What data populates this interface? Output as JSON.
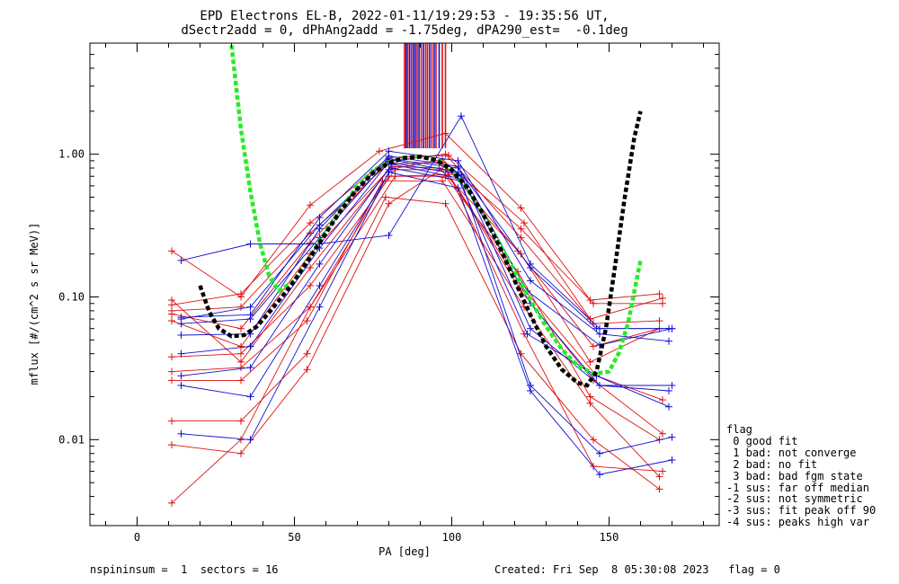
{
  "title": {
    "line1": "EPD Electrons EL-B, 2022-01-11/19:29:53 - 19:35:56 UT,",
    "line2": "dSectr2add = 0, dPhAng2add = -1.75deg, dPA290_est=  -0.1deg"
  },
  "footer": {
    "left": "nspininsum =  1  sectors = 16",
    "right": "Created: Fri Sep  8 05:30:08 2023   flag = 0"
  },
  "flag_legend": {
    "title": "flag",
    "items": [
      " 0 good fit",
      " 1 bad: not converge",
      " 2 bad: no fit",
      " 3 bad: bad fgm state",
      "-1 sus: far off median",
      "-2 sus: not symmetric",
      "-3 sus: fit peak off 90",
      "-4 sus: peaks high var"
    ]
  },
  "colors": {
    "red": "#e01010",
    "blue": "#1010d0",
    "green": "#22ee22",
    "black": "#000000"
  },
  "chart_data": {
    "type": "line",
    "xlabel": "PA [deg]",
    "ylabel": "mflux [#/(cm^2 s sr MeV)]",
    "xlim": [
      -15,
      185
    ],
    "ylim": [
      0.0025,
      6.0
    ],
    "ylog": true,
    "xticks": [
      0,
      50,
      100,
      150
    ],
    "yticks": [
      0.01,
      0.1,
      1.0
    ],
    "ytick_labels": [
      "0.01",
      "0.10",
      "1.00"
    ],
    "grid": false,
    "top_markers": {
      "x": [
        85,
        85.5,
        86,
        86.6,
        87.2,
        87.8,
        88.4,
        89,
        89.6,
        90.3,
        91,
        91.7,
        92.3,
        93,
        93.7,
        94.4,
        95,
        96,
        97,
        98
      ],
      "colors": [
        "red",
        "blue",
        "red",
        "blue",
        "red",
        "blue",
        "blue",
        "red",
        "blue",
        "red",
        "blue",
        "red",
        "red",
        "blue",
        "red",
        "blue",
        "red",
        "blue",
        "red",
        "red"
      ],
      "y_top": 6.0,
      "y_bottom": 1.1
    },
    "series": [
      {
        "color": "red",
        "x": [
          11,
          33,
          55,
          77,
          98,
          122,
          144,
          166
        ],
        "y": [
          0.21,
          0.1,
          0.44,
          1.05,
          1.4,
          0.42,
          0.095,
          0.105
        ]
      },
      {
        "color": "red",
        "x": [
          11,
          33,
          55,
          80,
          99,
          123,
          144,
          167
        ],
        "y": [
          0.088,
          0.105,
          0.33,
          0.95,
          0.98,
          0.33,
          0.07,
          0.098
        ]
      },
      {
        "color": "red",
        "x": [
          11,
          33,
          55,
          81,
          98,
          122,
          145,
          166
        ],
        "y": [
          0.08,
          0.085,
          0.28,
          0.9,
          1.0,
          0.26,
          0.065,
          0.068
        ]
      },
      {
        "color": "red",
        "x": [
          11,
          33,
          55,
          79,
          97,
          121,
          145,
          166
        ],
        "y": [
          0.076,
          0.06,
          0.24,
          0.85,
          0.88,
          0.21,
          0.045,
          0.06
        ]
      },
      {
        "color": "red",
        "x": [
          11,
          33,
          55,
          81,
          96,
          122,
          144,
          166
        ],
        "y": [
          0.068,
          0.045,
          0.2,
          0.82,
          0.8,
          0.2,
          0.035,
          0.06
        ]
      },
      {
        "color": "red",
        "x": [
          11,
          33,
          55,
          82,
          98,
          122,
          146,
          167
        ],
        "y": [
          0.038,
          0.04,
          0.12,
          0.78,
          0.78,
          0.12,
          0.028,
          0.019
        ]
      },
      {
        "color": "red",
        "x": [
          11,
          33,
          55,
          80,
          99,
          122,
          145,
          167
        ],
        "y": [
          0.03,
          0.032,
          0.085,
          0.7,
          0.72,
          0.11,
          0.026,
          0.011
        ]
      },
      {
        "color": "red",
        "x": [
          11,
          33,
          54,
          78,
          97,
          123,
          144,
          166
        ],
        "y": [
          0.026,
          0.026,
          0.068,
          0.65,
          0.65,
          0.085,
          0.018,
          0.0055
        ]
      },
      {
        "color": "red",
        "x": [
          11,
          33,
          54,
          79,
          98,
          122,
          145,
          166
        ],
        "y": [
          0.0135,
          0.0135,
          0.04,
          0.5,
          0.45,
          0.04,
          0.01,
          0.0045
        ]
      },
      {
        "color": "red",
        "x": [
          11,
          33,
          54,
          80,
          98,
          123,
          145,
          167
        ],
        "y": [
          0.0092,
          0.008,
          0.031,
          0.45,
          0.82,
          0.055,
          0.0065,
          0.006
        ]
      },
      {
        "color": "red",
        "x": [
          11,
          33,
          55,
          82,
          98,
          121,
          144,
          166
        ],
        "y": [
          0.0036,
          0.01,
          0.085,
          0.7,
          0.7,
          0.15,
          0.02,
          0.01
        ]
      },
      {
        "color": "red",
        "x": [
          11,
          33,
          55,
          80,
          97,
          122,
          145,
          167
        ],
        "y": [
          0.095,
          0.035,
          0.16,
          0.78,
          0.92,
          0.3,
          0.09,
          0.09
        ]
      },
      {
        "color": "blue",
        "x": [
          14,
          36,
          58,
          80,
          103,
          125,
          147,
          170
        ],
        "y": [
          0.18,
          0.235,
          0.235,
          0.27,
          1.85,
          0.17,
          0.06,
          0.06
        ]
      },
      {
        "color": "blue",
        "x": [
          14,
          36,
          58,
          80,
          102,
          125,
          147,
          169
        ],
        "y": [
          0.072,
          0.075,
          0.36,
          1.05,
          0.9,
          0.13,
          0.055,
          0.049
        ]
      },
      {
        "color": "blue",
        "x": [
          14,
          36,
          58,
          80,
          102,
          124,
          147,
          170
        ],
        "y": [
          0.054,
          0.055,
          0.3,
          0.97,
          0.82,
          0.11,
          0.046,
          0.06
        ]
      },
      {
        "color": "blue",
        "x": [
          14,
          36,
          58,
          80,
          102,
          125,
          147,
          170
        ],
        "y": [
          0.065,
          0.07,
          0.26,
          0.92,
          0.75,
          0.09,
          0.024,
          0.024
        ]
      },
      {
        "color": "blue",
        "x": [
          14,
          36,
          58,
          80,
          103,
          125,
          147,
          169
        ],
        "y": [
          0.04,
          0.045,
          0.22,
          0.88,
          0.72,
          0.06,
          0.024,
          0.022
        ]
      },
      {
        "color": "blue",
        "x": [
          14,
          36,
          58,
          81,
          102,
          124,
          146,
          169
        ],
        "y": [
          0.028,
          0.032,
          0.17,
          0.85,
          0.68,
          0.055,
          0.028,
          0.017
        ]
      },
      {
        "color": "blue",
        "x": [
          14,
          36,
          58,
          81,
          103,
          125,
          147,
          170
        ],
        "y": [
          0.024,
          0.02,
          0.12,
          0.8,
          0.65,
          0.024,
          0.008,
          0.0104
        ]
      },
      {
        "color": "blue",
        "x": [
          14,
          36,
          58,
          80,
          102,
          125,
          147,
          170
        ],
        "y": [
          0.011,
          0.01,
          0.085,
          0.75,
          0.58,
          0.022,
          0.0057,
          0.0072
        ]
      },
      {
        "color": "blue",
        "x": [
          14,
          36,
          58,
          80,
          102,
          125,
          146,
          169
        ],
        "y": [
          0.07,
          0.085,
          0.32,
          0.93,
          0.8,
          0.16,
          0.06,
          0.06
        ]
      }
    ],
    "fits": [
      {
        "color": "green",
        "style": "dashed",
        "x": [
          30,
          33,
          36,
          39,
          42,
          45,
          50,
          55,
          60,
          65,
          70,
          75,
          80,
          85,
          90,
          95,
          100,
          105,
          110,
          115,
          120,
          125,
          130,
          135,
          140,
          145,
          150,
          153,
          156,
          160
        ],
        "y": [
          5.8,
          1.5,
          0.55,
          0.24,
          0.14,
          0.11,
          0.13,
          0.19,
          0.29,
          0.42,
          0.6,
          0.77,
          0.88,
          0.95,
          0.96,
          0.92,
          0.78,
          0.57,
          0.38,
          0.24,
          0.15,
          0.095,
          0.062,
          0.043,
          0.033,
          0.029,
          0.03,
          0.04,
          0.065,
          0.18
        ]
      },
      {
        "color": "black",
        "style": "dashed",
        "x": [
          20,
          23,
          26,
          30,
          34,
          38,
          42,
          46,
          50,
          55,
          60,
          65,
          70,
          75,
          80,
          85,
          90,
          95,
          100,
          105,
          110,
          115,
          120,
          125,
          130,
          135,
          140,
          143,
          146,
          149,
          152,
          155,
          158,
          160
        ],
        "y": [
          0.12,
          0.078,
          0.06,
          0.053,
          0.054,
          0.062,
          0.078,
          0.1,
          0.13,
          0.19,
          0.28,
          0.41,
          0.57,
          0.74,
          0.87,
          0.94,
          0.96,
          0.91,
          0.78,
          0.58,
          0.38,
          0.23,
          0.13,
          0.075,
          0.045,
          0.031,
          0.025,
          0.024,
          0.03,
          0.06,
          0.17,
          0.5,
          1.3,
          2.0
        ]
      }
    ]
  }
}
